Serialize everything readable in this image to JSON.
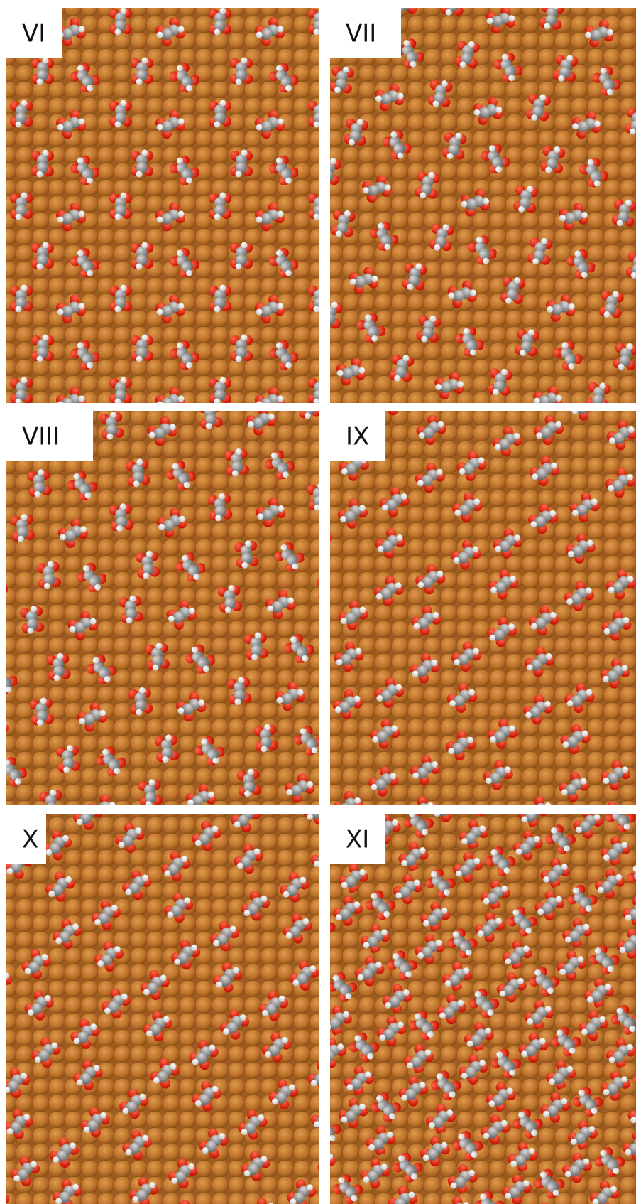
{
  "panels": [
    {
      "label": "VI"
    },
    {
      "label": "VII"
    },
    {
      "label": "VIII"
    },
    {
      "label": "IX"
    },
    {
      "label": "X"
    },
    {
      "label": "XI"
    }
  ]
}
